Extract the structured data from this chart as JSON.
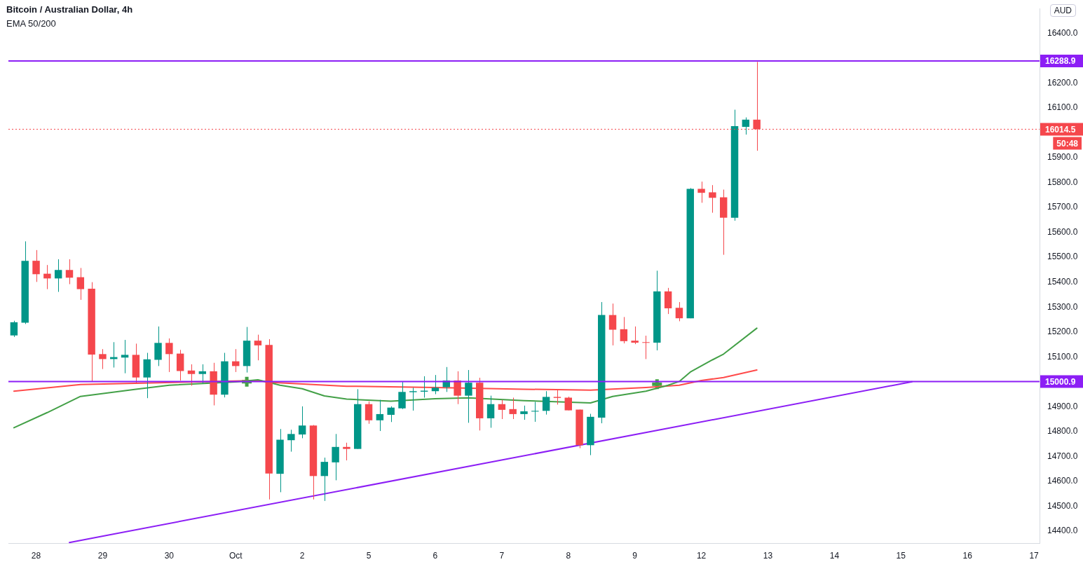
{
  "chart_data": {
    "type": "candlestick",
    "title": "Bitcoin / Australian Dollar, 4h",
    "subtitle": "EMA 50/200",
    "ylabel": "AUD",
    "categories": [
      null,
      null,
      "28",
      null,
      null,
      null,
      null,
      null,
      "29",
      null,
      null,
      null,
      null,
      null,
      "30",
      null,
      null,
      null,
      null,
      null,
      "Oct",
      null,
      null,
      null,
      null,
      null,
      "2",
      null,
      null,
      null,
      null,
      null,
      "5",
      null,
      null,
      null,
      null,
      null,
      "6",
      null,
      null,
      null,
      null,
      null,
      "7",
      null,
      null,
      null,
      null,
      null,
      "8",
      null,
      null,
      null,
      null,
      null,
      "9",
      null,
      null,
      null,
      null,
      null,
      "12",
      null,
      null,
      null,
      null,
      null,
      "13",
      null,
      null,
      null,
      null,
      null,
      "14",
      null,
      null,
      null,
      null,
      null,
      "15",
      null,
      null,
      null,
      null,
      null,
      "16",
      null,
      null,
      null,
      null,
      null,
      "17"
    ],
    "ohlc": [
      [
        15186,
        15245,
        15180,
        15239
      ],
      [
        15237,
        15564,
        15232,
        15486
      ],
      [
        15486,
        15529,
        15401,
        15432
      ],
      [
        15434,
        15469,
        15372,
        15415
      ],
      [
        15415,
        15492,
        15361,
        15449
      ],
      [
        15449,
        15492,
        15392,
        15418
      ],
      [
        15420,
        15457,
        15329,
        15372
      ],
      [
        15374,
        15400,
        15001,
        15109
      ],
      [
        15111,
        15131,
        15051,
        15091
      ],
      [
        15091,
        15159,
        15057,
        15099
      ],
      [
        15097,
        15168,
        15034,
        15108
      ],
      [
        15108,
        15153,
        14993,
        15017
      ],
      [
        15017,
        15116,
        14934,
        15090
      ],
      [
        15088,
        15222,
        15063,
        15156
      ],
      [
        15156,
        15174,
        15039,
        15111
      ],
      [
        15113,
        15128,
        15005,
        15043
      ],
      [
        15045,
        15070,
        14984,
        15031
      ],
      [
        15031,
        15070,
        14993,
        15042
      ],
      [
        15042,
        15076,
        14905,
        14948
      ],
      [
        14948,
        15116,
        14937,
        15082
      ],
      [
        15082,
        15131,
        15039,
        15063
      ],
      [
        15063,
        15220,
        15037,
        15165
      ],
      [
        15165,
        15189,
        15086,
        15146
      ],
      [
        15148,
        15171,
        14527,
        14631
      ],
      [
        14630,
        14810,
        14556,
        14767
      ],
      [
        14765,
        14807,
        14719,
        14790
      ],
      [
        14788,
        14901,
        14773,
        14824
      ],
      [
        14824,
        14826,
        14527,
        14621
      ],
      [
        14621,
        14695,
        14521,
        14678
      ],
      [
        14676,
        14790,
        14604,
        14738
      ],
      [
        14738,
        14755,
        14684,
        14730
      ],
      [
        14730,
        14970,
        14730,
        14910
      ],
      [
        14910,
        14921,
        14831,
        14845
      ],
      [
        14845,
        14927,
        14802,
        14870
      ],
      [
        14867,
        14901,
        14838,
        14896
      ],
      [
        14893,
        14999,
        14890,
        14959
      ],
      [
        14958,
        14976,
        14884,
        14962
      ],
      [
        14960,
        15022,
        14936,
        14964
      ],
      [
        14962,
        15027,
        14950,
        14976
      ],
      [
        14978,
        15059,
        14959,
        15005
      ],
      [
        15005,
        15042,
        14910,
        14944
      ],
      [
        14944,
        15047,
        14835,
        14996
      ],
      [
        14996,
        15016,
        14804,
        14853
      ],
      [
        14853,
        14944,
        14815,
        14910
      ],
      [
        14910,
        14927,
        14850,
        14887
      ],
      [
        14890,
        14936,
        14850,
        14870
      ],
      [
        14870,
        14904,
        14847,
        14881
      ],
      [
        14880,
        14919,
        14839,
        14883
      ],
      [
        14883,
        14962,
        14868,
        14939
      ],
      [
        14939,
        14967,
        14908,
        14935
      ],
      [
        14936,
        14940,
        14885,
        14885
      ],
      [
        14888,
        14888,
        14733,
        14745
      ],
      [
        14745,
        14871,
        14705,
        14859
      ],
      [
        14856,
        15320,
        14833,
        15268
      ],
      [
        15268,
        15314,
        15146,
        15209
      ],
      [
        15211,
        15260,
        15154,
        15163
      ],
      [
        15165,
        15222,
        15151,
        15157
      ],
      [
        15159,
        15185,
        15091,
        15157
      ],
      [
        15157,
        15446,
        15126,
        15363
      ],
      [
        15363,
        15377,
        15272,
        15295
      ],
      [
        15297,
        15320,
        15243,
        15255
      ],
      [
        15255,
        15778,
        15255,
        15775
      ],
      [
        15775,
        15804,
        15719,
        15759
      ],
      [
        15761,
        15790,
        15679,
        15739
      ],
      [
        15741,
        15772,
        15510,
        15659
      ],
      [
        15659,
        16093,
        15647,
        16027
      ],
      [
        16024,
        16062,
        15993,
        16053
      ],
      [
        16053,
        16285,
        15928,
        16014.5
      ],
      null,
      null,
      null,
      null,
      null,
      null,
      null,
      null,
      null,
      null,
      null,
      null,
      null,
      null,
      null,
      null,
      null,
      null,
      null,
      null,
      null,
      null,
      null,
      null,
      null
    ],
    "colors": [
      "#009688",
      "#009688",
      "#f5474c",
      "#f5474c",
      "#009688",
      "#f5474c",
      "#f5474c",
      "#f5474c",
      "#f5474c",
      "#009688",
      "#009688",
      "#f5474c",
      "#009688",
      "#009688",
      "#f5474c",
      "#f5474c",
      "#f5474c",
      "#009688",
      "#f5474c",
      "#009688",
      "#f5474c",
      "#009688",
      "#f5474c",
      "#f5474c",
      "#009688",
      "#009688",
      "#009688",
      "#f5474c",
      "#009688",
      "#009688",
      "#f5474c",
      "#009688",
      "#f5474c",
      "#009688",
      "#009688",
      "#009688",
      "#009688",
      "#009688",
      "#009688",
      "#009688",
      "#f5474c",
      "#009688",
      "#f5474c",
      "#009688",
      "#f5474c",
      "#f5474c",
      "#009688",
      "#009688",
      "#009688",
      "#f5474c",
      "#f5474c",
      "#f5474c",
      "#009688",
      "#009688",
      "#f5474c",
      "#f5474c",
      "#f5474c",
      "#f5474c",
      "#009688",
      "#f5474c",
      "#f5474c",
      "#009688",
      "#f5474c",
      "#f5474c",
      "#f5474c",
      "#009688",
      "#009688",
      "#f5474c",
      null,
      null,
      null,
      null,
      null,
      null,
      null,
      null,
      null,
      null,
      null,
      null,
      null,
      null,
      null,
      null,
      null,
      null,
      null,
      null,
      null,
      null,
      null,
      null,
      null
    ],
    "series": [
      {
        "type": "line",
        "color": "#43a047",
        "marker": "none",
        "values": [
          14815,
          null,
          null,
          14876,
          null,
          null,
          14941,
          null,
          null,
          null,
          null,
          14970,
          null,
          null,
          14986,
          null,
          null,
          null,
          null,
          null,
          14999,
          null,
          15008,
          null,
          14986,
          null,
          14972,
          null,
          14943,
          null,
          14930,
          null,
          null,
          null,
          14922,
          null,
          null,
          null,
          14932,
          null,
          null,
          14935,
          null,
          null,
          null,
          null,
          14924,
          null,
          null,
          null,
          null,
          null,
          14915,
          null,
          14941,
          null,
          null,
          14962,
          null,
          14986,
          15001,
          15039,
          null,
          15088,
          15111,
          null,
          null,
          15215,
          null,
          null,
          null,
          null,
          null,
          null,
          null,
          null,
          null,
          null,
          null,
          null,
          null,
          null,
          null,
          null,
          null,
          null,
          null,
          null,
          null,
          null,
          null,
          null,
          null
        ]
      },
      {
        "type": "line",
        "color": "#ff4a4a",
        "marker": "none",
        "values": [
          14962,
          null,
          null,
          null,
          null,
          null,
          14989,
          null,
          null,
          null,
          null,
          null,
          null,
          14996,
          null,
          null,
          null,
          null,
          null,
          null,
          null,
          null,
          15005,
          14998,
          null,
          null,
          null,
          null,
          null,
          null,
          14982,
          null,
          null,
          null,
          null,
          null,
          null,
          null,
          14977,
          null,
          null,
          null,
          null,
          null,
          null,
          null,
          14970,
          null,
          null,
          null,
          null,
          null,
          14966,
          null,
          null,
          null,
          null,
          14977,
          null,
          null,
          14986,
          null,
          15005,
          null,
          15017,
          null,
          null,
          15047,
          null,
          null,
          null,
          null,
          null,
          null,
          null,
          null,
          null,
          null,
          null,
          null,
          null,
          null,
          null,
          null,
          null,
          null,
          null,
          null,
          null,
          null,
          null,
          null,
          null
        ]
      },
      {
        "type": "line",
        "color": "#8c1ef5",
        "marker": "none",
        "values": [
          null,
          null,
          null,
          null,
          null,
          14354,
          null,
          null,
          null,
          null,
          null,
          null,
          null,
          null,
          null,
          null,
          null,
          null,
          null,
          null,
          null,
          null,
          null,
          null,
          null,
          null,
          null,
          null,
          null,
          null,
          null,
          null,
          null,
          null,
          null,
          null,
          null,
          null,
          null,
          null,
          null,
          null,
          null,
          null,
          null,
          null,
          null,
          null,
          null,
          null,
          null,
          null,
          null,
          null,
          null,
          null,
          null,
          null,
          null,
          null,
          null,
          null,
          null,
          null,
          null,
          null,
          null,
          null,
          null,
          null,
          null,
          null,
          null,
          null,
          null,
          null,
          null,
          null,
          null,
          null,
          null,
          15000,
          null,
          null,
          null,
          null,
          null,
          null,
          null,
          null,
          null,
          null,
          null
        ]
      },
      {
        "type": "scatter",
        "color": "#43a047",
        "marker": "cross",
        "values": [
          null,
          null,
          null,
          null,
          null,
          null,
          null,
          null,
          null,
          null,
          null,
          null,
          null,
          null,
          null,
          null,
          null,
          null,
          null,
          null,
          null,
          15000,
          null,
          null,
          null,
          null,
          null,
          null,
          null,
          null,
          null,
          null,
          null,
          null,
          null,
          null,
          null,
          null,
          null,
          null,
          null,
          null,
          null,
          null,
          null,
          null,
          null,
          null,
          null,
          null,
          null,
          null,
          null,
          null,
          null,
          null,
          null,
          null,
          14990,
          null,
          null,
          null,
          null,
          null,
          null,
          null,
          null,
          null,
          null,
          null,
          null,
          null,
          null,
          null,
          null,
          null,
          null,
          null,
          null,
          null,
          null,
          null,
          null,
          null,
          null,
          null,
          null,
          null,
          null,
          null,
          null,
          null,
          null
        ]
      }
    ],
    "ylim": [
      14350,
      16500
    ],
    "yticks": [
      {
        "value": 14400,
        "label": "14400.0"
      },
      {
        "value": 14500,
        "label": "14500.0"
      },
      {
        "value": 14600,
        "label": "14600.0"
      },
      {
        "value": 14700,
        "label": "14700.0"
      },
      {
        "value": 14800,
        "label": "14800.0"
      },
      {
        "value": 14900,
        "label": "14900.0"
      },
      {
        "value": 15100,
        "label": "15100.0"
      },
      {
        "value": 15200,
        "label": "15200.0"
      },
      {
        "value": 15300,
        "label": "15300.0"
      },
      {
        "value": 15400,
        "label": "15400.0"
      },
      {
        "value": 15500,
        "label": "15500.0"
      },
      {
        "value": 15600,
        "label": "15600.0"
      },
      {
        "value": 15700,
        "label": "15700.0"
      },
      {
        "value": 15800,
        "label": "15800.0"
      },
      {
        "value": 15900,
        "label": "15900.0"
      },
      {
        "value": 16100,
        "label": "16100.0"
      },
      {
        "value": 16200,
        "label": "16200.0"
      },
      {
        "value": 16400,
        "label": "16400.0"
      }
    ],
    "ref_lines": [
      {
        "axis": "y",
        "value": 16288.9,
        "label": "16288.9",
        "color": "#8c1ef5",
        "line_style": "solid"
      },
      {
        "axis": "y",
        "value": 15000.9,
        "label": "15000.9",
        "color": "#8c1ef5",
        "line_style": "solid"
      },
      {
        "axis": "y",
        "value": 16014.5,
        "label": "16014.5",
        "color": "#f5474c",
        "line_style": "dotted"
      }
    ],
    "annotations": [
      "50:48"
    ]
  }
}
